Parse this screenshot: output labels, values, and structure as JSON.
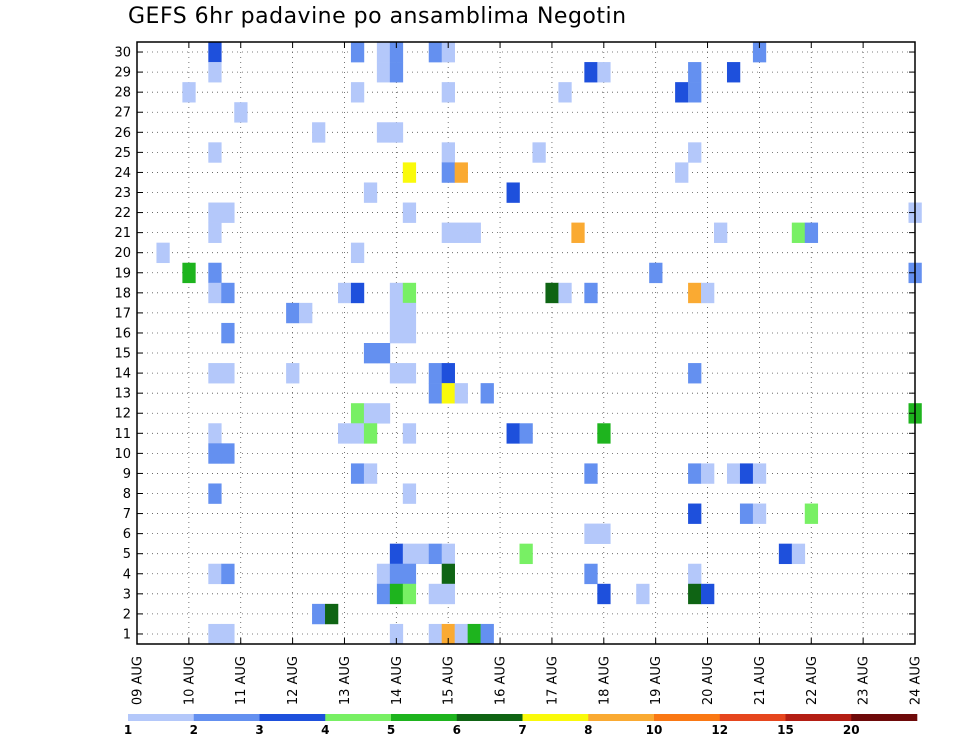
{
  "chart_data": {
    "type": "heatmap",
    "title": "GEFS 6hr padavine po ansamblima Negotin",
    "x_tick_labels": [
      "09 AUG",
      "10 AUG",
      "11 AUG",
      "12 AUG",
      "13 AUG",
      "14 AUG",
      "15 AUG",
      "16 AUG",
      "17 AUG",
      "18 AUG",
      "19 AUG",
      "20 AUG",
      "21 AUG",
      "22 AUG",
      "23 AUG",
      "24 AUG"
    ],
    "y_tick_labels": [
      "1",
      "2",
      "3",
      "4",
      "5",
      "6",
      "7",
      "8",
      "9",
      "10",
      "11",
      "12",
      "13",
      "14",
      "15",
      "16",
      "17",
      "18",
      "19",
      "20",
      "21",
      "22",
      "23",
      "24",
      "25",
      "26",
      "27",
      "28",
      "29",
      "30"
    ],
    "xlim_days": [
      0,
      15
    ],
    "ylim": [
      0.5,
      30.5
    ],
    "steps_per_day": 4,
    "grid": true,
    "colorbar": {
      "labels": [
        "1",
        "2",
        "3",
        "4",
        "5",
        "6",
        "7",
        "8",
        "10",
        "12",
        "15",
        "20"
      ],
      "colors": [
        "#b4c8fa",
        "#6490f0",
        "#1e50dc",
        "#78f064",
        "#1eb41e",
        "#0f6414",
        "#fafa0a",
        "#faaa32",
        "#fa7814",
        "#e6461e",
        "#b41e14",
        "#6e0a0a"
      ]
    },
    "cells": [
      [
        1.5,
        30,
        3
      ],
      [
        4.25,
        30,
        2
      ],
      [
        4.75,
        30,
        1
      ],
      [
        5,
        30,
        2
      ],
      [
        5.75,
        30,
        2
      ],
      [
        6,
        30,
        1
      ],
      [
        12,
        30,
        2
      ],
      [
        1.5,
        29,
        1
      ],
      [
        4.75,
        29,
        1
      ],
      [
        5,
        29,
        2
      ],
      [
        8.75,
        29,
        3
      ],
      [
        9,
        29,
        1
      ],
      [
        10.75,
        29,
        2
      ],
      [
        11.5,
        29,
        3
      ],
      [
        1,
        28,
        1
      ],
      [
        4.25,
        28,
        1
      ],
      [
        6,
        28,
        1
      ],
      [
        8.25,
        28,
        1
      ],
      [
        10.5,
        28,
        3
      ],
      [
        10.75,
        28,
        2
      ],
      [
        2,
        27,
        1
      ],
      [
        3.5,
        26,
        1
      ],
      [
        4.75,
        26,
        1
      ],
      [
        5,
        26,
        1
      ],
      [
        1.5,
        25,
        1
      ],
      [
        6,
        25,
        1
      ],
      [
        7.75,
        25,
        1
      ],
      [
        10.75,
        25,
        1
      ],
      [
        5.25,
        24,
        7
      ],
      [
        6,
        24,
        2
      ],
      [
        6.25,
        24,
        8
      ],
      [
        10.5,
        24,
        1
      ],
      [
        4.5,
        23,
        1
      ],
      [
        7.25,
        23,
        3
      ],
      [
        1.5,
        22,
        1
      ],
      [
        1.75,
        22,
        1
      ],
      [
        5.25,
        22,
        1
      ],
      [
        15,
        22,
        1
      ],
      [
        1.5,
        21,
        1
      ],
      [
        6,
        21,
        1
      ],
      [
        6.25,
        21,
        1
      ],
      [
        6.5,
        21,
        1
      ],
      [
        8.5,
        21,
        8
      ],
      [
        11.25,
        21,
        1
      ],
      [
        12.75,
        21,
        4
      ],
      [
        13,
        21,
        2
      ],
      [
        0.5,
        20,
        1
      ],
      [
        4.25,
        20,
        1
      ],
      [
        1,
        19,
        5
      ],
      [
        1.5,
        19,
        2
      ],
      [
        10,
        19,
        2
      ],
      [
        15,
        19,
        2
      ],
      [
        1.5,
        18,
        1
      ],
      [
        1.75,
        18,
        2
      ],
      [
        4,
        18,
        1
      ],
      [
        4.25,
        18,
        3
      ],
      [
        5,
        18,
        1
      ],
      [
        5.25,
        18,
        4
      ],
      [
        8,
        18,
        6
      ],
      [
        8.25,
        18,
        1
      ],
      [
        8.75,
        18,
        2
      ],
      [
        10.75,
        18,
        8
      ],
      [
        11,
        18,
        1
      ],
      [
        3,
        17,
        2
      ],
      [
        3.25,
        17,
        1
      ],
      [
        5,
        17,
        1
      ],
      [
        5.25,
        17,
        1
      ],
      [
        1.75,
        16,
        2
      ],
      [
        5,
        16,
        1
      ],
      [
        5.25,
        16,
        1
      ],
      [
        4.5,
        15,
        2
      ],
      [
        4.75,
        15,
        2
      ],
      [
        1.5,
        14,
        1
      ],
      [
        1.75,
        14,
        1
      ],
      [
        3,
        14,
        1
      ],
      [
        5,
        14,
        1
      ],
      [
        5.25,
        14,
        1
      ],
      [
        5.75,
        14,
        2
      ],
      [
        6,
        14,
        3
      ],
      [
        10.75,
        14,
        2
      ],
      [
        5.75,
        13,
        2
      ],
      [
        6,
        13,
        7
      ],
      [
        6.25,
        13,
        1
      ],
      [
        6.75,
        13,
        2
      ],
      [
        4.25,
        12,
        4
      ],
      [
        4.5,
        12,
        1
      ],
      [
        4.75,
        12,
        1
      ],
      [
        15,
        12,
        5
      ],
      [
        1.5,
        11,
        1
      ],
      [
        4,
        11,
        1
      ],
      [
        4.25,
        11,
        1
      ],
      [
        4.5,
        11,
        4
      ],
      [
        5.25,
        11,
        1
      ],
      [
        7.25,
        11,
        3
      ],
      [
        7.5,
        11,
        2
      ],
      [
        9,
        11,
        5
      ],
      [
        1.5,
        10,
        2
      ],
      [
        1.75,
        10,
        2
      ],
      [
        4.25,
        9,
        2
      ],
      [
        4.5,
        9,
        1
      ],
      [
        8.75,
        9,
        2
      ],
      [
        10.75,
        9,
        2
      ],
      [
        11,
        9,
        1
      ],
      [
        11.5,
        9,
        1
      ],
      [
        11.75,
        9,
        3
      ],
      [
        12,
        9,
        1
      ],
      [
        1.5,
        8,
        2
      ],
      [
        5.25,
        8,
        1
      ],
      [
        10.75,
        7,
        3
      ],
      [
        11.75,
        7,
        2
      ],
      [
        12,
        7,
        1
      ],
      [
        13,
        7,
        4
      ],
      [
        8.75,
        6,
        1
      ],
      [
        9,
        6,
        1
      ],
      [
        5,
        5,
        3
      ],
      [
        5.25,
        5,
        1
      ],
      [
        5.5,
        5,
        1
      ],
      [
        5.75,
        5,
        2
      ],
      [
        6,
        5,
        1
      ],
      [
        7.5,
        5,
        4
      ],
      [
        12.5,
        5,
        3
      ],
      [
        12.75,
        5,
        1
      ],
      [
        1.5,
        4,
        1
      ],
      [
        1.75,
        4,
        2
      ],
      [
        4.75,
        4,
        1
      ],
      [
        5,
        4,
        2
      ],
      [
        5.25,
        4,
        2
      ],
      [
        6,
        4,
        6
      ],
      [
        8.75,
        4,
        2
      ],
      [
        10.75,
        4,
        1
      ],
      [
        4.75,
        3,
        2
      ],
      [
        5,
        3,
        5
      ],
      [
        5.25,
        3,
        4
      ],
      [
        5.75,
        3,
        1
      ],
      [
        6,
        3,
        1
      ],
      [
        9,
        3,
        3
      ],
      [
        9.75,
        3,
        1
      ],
      [
        10.75,
        3,
        6
      ],
      [
        11,
        3,
        3
      ],
      [
        3.5,
        2,
        2
      ],
      [
        3.75,
        2,
        6
      ],
      [
        1.5,
        1,
        1
      ],
      [
        1.75,
        1,
        1
      ],
      [
        5,
        1,
        1
      ],
      [
        5.75,
        1,
        1
      ],
      [
        6,
        1,
        8
      ],
      [
        6.25,
        1,
        1
      ],
      [
        6.5,
        1,
        5
      ],
      [
        6.75,
        1,
        2
      ]
    ]
  }
}
